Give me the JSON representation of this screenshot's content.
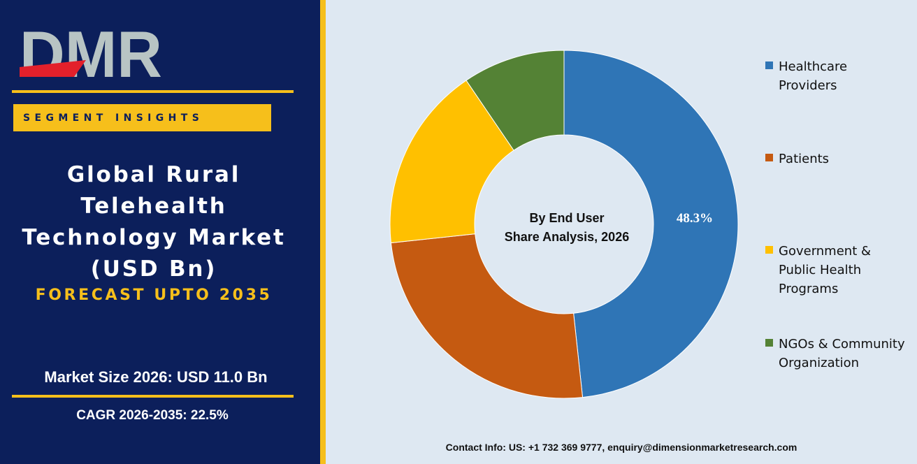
{
  "brand": {
    "logo_text": "DMR"
  },
  "sidebar": {
    "badge": "SEGMENT INSIGHTS",
    "title_lines": [
      "Global Rural",
      "Telehealth",
      "Technology Market",
      "(USD Bn)"
    ],
    "forecast": "FORECAST UPTO 2035",
    "market_size": "Market Size 2026: USD 11.0 Bn",
    "cagr": "CAGR 2026-2035: 22.5%"
  },
  "colors": {
    "navy": "#0c1f5b",
    "gold": "#f6bf1b",
    "panel_bg": "#dee8f2",
    "logo_red": "#e3202b",
    "logo_grey": "#b8c4c4"
  },
  "chart_data": {
    "type": "pie",
    "donut": true,
    "center_label": [
      "By End User",
      "Share Analysis, 2026"
    ],
    "legend_position": "right",
    "series": [
      {
        "name": "Healthcare Providers",
        "value": 48.3,
        "label": "48.3%",
        "color": "#2f75b6"
      },
      {
        "name": "Patients",
        "value": 25.0,
        "label": "",
        "color": "#c55a11"
      },
      {
        "name": "Government & Public Health Programs",
        "value": 17.2,
        "label": "",
        "color": "#ffc000"
      },
      {
        "name": "NGOs & Community Organization",
        "value": 9.5,
        "label": "",
        "color": "#548235"
      }
    ]
  },
  "legend": [
    {
      "lines": [
        "Healthcare",
        "Providers"
      ]
    },
    {
      "lines": [
        "Patients"
      ]
    },
    {
      "lines": [
        "Government &",
        "Public Health",
        "Programs"
      ]
    },
    {
      "lines": [
        "NGOs & Community",
        "Organization"
      ]
    }
  ],
  "footer": {
    "contact": "Contact Info: US: +1 732 369 9777, enquiry@dimensionmarketresearch.com"
  }
}
